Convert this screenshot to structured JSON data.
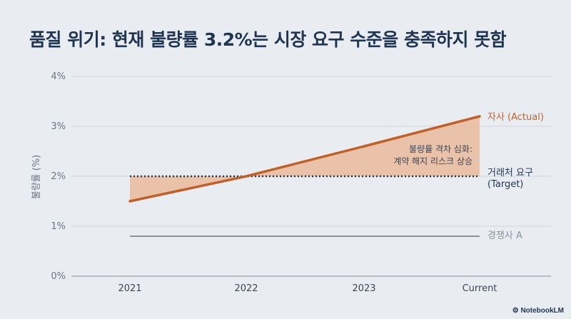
{
  "title": "품질 위기: 현재 불량률 3.2%는 시장 요구 수준을 충족하지 못함",
  "watermark": "NotebookLM",
  "colors": {
    "actual": "#c0612a",
    "gap_fill": "#eab99c",
    "target": "#1f3551",
    "competitor": "#8a939e",
    "grid": "#cfd5dc"
  },
  "chart_data": {
    "type": "line",
    "categories": [
      "2021",
      "2022",
      "2023",
      "Current"
    ],
    "ylabel": "불량률 (%)",
    "ylim": [
      0,
      4
    ],
    "yticks": [
      "0%",
      "1%",
      "2%",
      "3%",
      "4%"
    ],
    "grid": true,
    "series": [
      {
        "name": "자사 (Actual)",
        "values": [
          1.5,
          2.0,
          2.6,
          3.2
        ],
        "style": "solid"
      },
      {
        "name": "거래처 요구 (Target)",
        "values": [
          2.0,
          2.0,
          2.0,
          2.0
        ],
        "style": "dotted"
      },
      {
        "name": "경쟁사 A",
        "values": [
          0.8,
          0.8,
          0.8,
          0.8
        ],
        "style": "solid"
      }
    ],
    "series_labels": {
      "actual": "자사 (Actual)",
      "target_line1": "거래처 요구",
      "target_line2": "(Target)",
      "competitor": "경쟁사 A"
    },
    "annotation": {
      "line1": "불량률 격차 심화:",
      "line2": "계약 해지 리스크 상승"
    }
  }
}
